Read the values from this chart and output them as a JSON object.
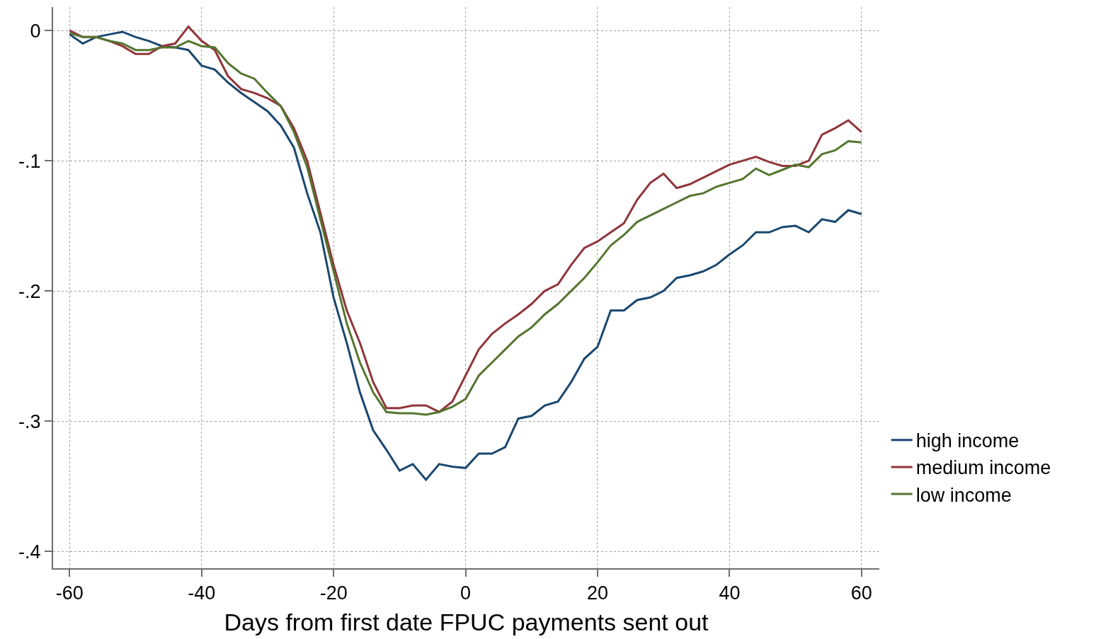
{
  "chart_data": {
    "type": "line",
    "xlabel": "Days from first date FPUC payments sent out",
    "x": [
      -60,
      -58,
      -56,
      -54,
      -52,
      -50,
      -48,
      -46,
      -44,
      -42,
      -40,
      -38,
      -36,
      -34,
      -32,
      -30,
      -28,
      -26,
      -24,
      -22,
      -20,
      -18,
      -16,
      -14,
      -12,
      -10,
      -8,
      -6,
      -4,
      -2,
      0,
      2,
      4,
      6,
      8,
      10,
      12,
      14,
      16,
      18,
      20,
      22,
      24,
      26,
      28,
      30,
      32,
      34,
      36,
      38,
      40,
      42,
      44,
      46,
      48,
      50,
      52,
      54,
      56,
      58,
      60
    ],
    "series": [
      {
        "name": "high income",
        "color": "#1a476f",
        "values": [
          -0.003,
          -0.01,
          -0.005,
          -0.003,
          -0.001,
          -0.005,
          -0.008,
          -0.012,
          -0.013,
          -0.015,
          -0.027,
          -0.03,
          -0.04,
          -0.048,
          -0.055,
          -0.062,
          -0.073,
          -0.09,
          -0.125,
          -0.155,
          -0.205,
          -0.24,
          -0.278,
          -0.307,
          -0.322,
          -0.338,
          -0.333,
          -0.345,
          -0.333,
          -0.335,
          -0.336,
          -0.325,
          -0.325,
          -0.32,
          -0.298,
          -0.296,
          -0.288,
          -0.285,
          -0.27,
          -0.252,
          -0.243,
          -0.215,
          -0.215,
          -0.207,
          -0.205,
          -0.2,
          -0.19,
          -0.188,
          -0.185,
          -0.18,
          -0.172,
          -0.165,
          -0.155,
          -0.155,
          -0.151,
          -0.15,
          -0.155,
          -0.145,
          -0.147,
          -0.138,
          -0.141
        ]
      },
      {
        "name": "medium income",
        "color": "#90353b",
        "values": [
          0,
          -0.005,
          -0.005,
          -0.008,
          -0.012,
          -0.018,
          -0.018,
          -0.012,
          -0.01,
          0.003,
          -0.008,
          -0.015,
          -0.035,
          -0.045,
          -0.048,
          -0.052,
          -0.058,
          -0.075,
          -0.1,
          -0.14,
          -0.18,
          -0.215,
          -0.24,
          -0.27,
          -0.29,
          -0.29,
          -0.288,
          -0.288,
          -0.293,
          -0.285,
          -0.265,
          -0.245,
          -0.233,
          -0.225,
          -0.218,
          -0.21,
          -0.2,
          -0.195,
          -0.18,
          -0.167,
          -0.162,
          -0.155,
          -0.148,
          -0.13,
          -0.117,
          -0.11,
          -0.121,
          -0.118,
          -0.113,
          -0.108,
          -0.103,
          -0.1,
          -0.097,
          -0.101,
          -0.104,
          -0.104,
          -0.1,
          -0.08,
          -0.075,
          -0.069,
          -0.078
        ]
      },
      {
        "name": "low income",
        "color": "#55752f",
        "values": [
          -0.002,
          -0.005,
          -0.005,
          -0.008,
          -0.01,
          -0.015,
          -0.015,
          -0.013,
          -0.013,
          -0.008,
          -0.012,
          -0.013,
          -0.025,
          -0.033,
          -0.037,
          -0.048,
          -0.058,
          -0.078,
          -0.105,
          -0.145,
          -0.185,
          -0.225,
          -0.255,
          -0.278,
          -0.293,
          -0.294,
          -0.294,
          -0.295,
          -0.293,
          -0.289,
          -0.283,
          -0.265,
          -0.255,
          -0.245,
          -0.235,
          -0.228,
          -0.218,
          -0.21,
          -0.2,
          -0.19,
          -0.178,
          -0.165,
          -0.157,
          -0.147,
          -0.142,
          -0.137,
          -0.132,
          -0.127,
          -0.125,
          -0.12,
          -0.117,
          -0.114,
          -0.106,
          -0.111,
          -0.107,
          -0.103,
          -0.105,
          -0.095,
          -0.092,
          -0.085,
          -0.086
        ]
      }
    ],
    "xlim": [
      -62.5,
      62.7
    ],
    "ylim": [
      -0.413,
      0.018
    ],
    "xticks": [
      -60,
      -40,
      -20,
      0,
      20,
      40,
      60
    ],
    "yticks": [
      {
        "value": 0,
        "label": "0"
      },
      {
        "value": -0.1,
        "label": "-.1"
      },
      {
        "value": -0.2,
        "label": "-.2"
      },
      {
        "value": -0.3,
        "label": "-.3"
      },
      {
        "value": -0.4,
        "label": "-.4"
      }
    ],
    "grid": true,
    "legend": "right",
    "line_style": "solid",
    "marker": "none"
  }
}
